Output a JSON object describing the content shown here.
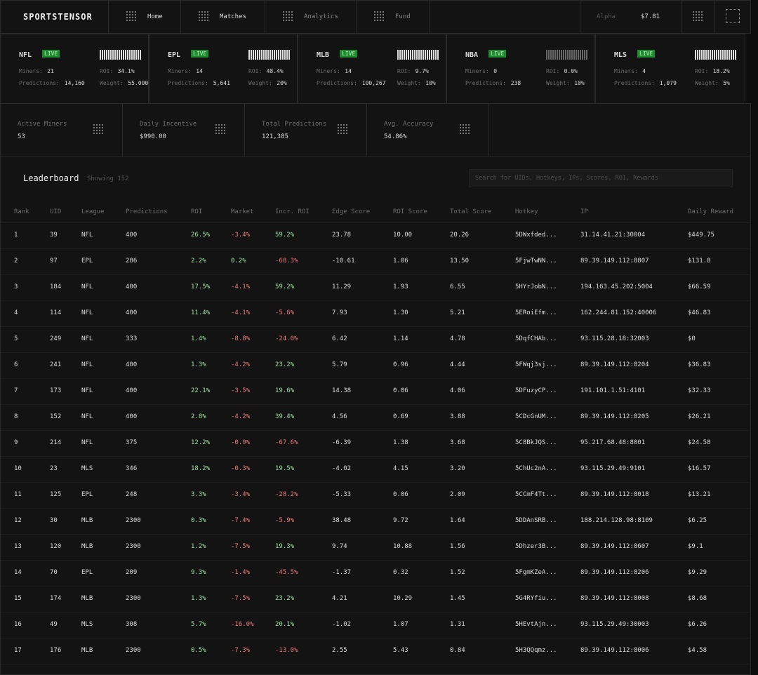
{
  "nav": {
    "brand": "SPORTSTENSOR",
    "links": [
      "Home",
      "Matches",
      "Analytics",
      "Fund"
    ],
    "alpha_label": "Alpha",
    "alpha_value": "$7.81"
  },
  "card_labels": {
    "miners": "Miners:",
    "roi": "ROI:",
    "predictions": "Predictions:",
    "weight": "Weight:"
  },
  "leagues": [
    {
      "name": "NFL",
      "status": "LIVE",
      "miners": "21",
      "roi": "34.1%",
      "predictions": "14,160",
      "weight": "55.0000"
    },
    {
      "name": "EPL",
      "status": "LIVE",
      "miners": "14",
      "roi": "48.4%",
      "predictions": "5,641",
      "weight": "20%"
    },
    {
      "name": "MLB",
      "status": "LIVE",
      "miners": "14",
      "roi": "9.7%",
      "predictions": "100,267",
      "weight": "10%"
    },
    {
      "name": "NBA",
      "status": "LIVE",
      "miners": "0",
      "roi": "0.0%",
      "predictions": "238",
      "weight": "10%"
    },
    {
      "name": "MLS",
      "status": "LIVE",
      "miners": "4",
      "roi": "18.2%",
      "predictions": "1,079",
      "weight": "5%"
    }
  ],
  "stats": [
    {
      "label": "Active Miners",
      "value": "53"
    },
    {
      "label": "Daily Incentive",
      "value": "$990.00"
    },
    {
      "label": "Total Predictions",
      "value": "121,385"
    },
    {
      "label": "Avg. Accuracy",
      "value": "54.86%"
    }
  ],
  "leaderboard": {
    "title": "Leaderboard",
    "showing": "Showing 152",
    "search_placeholder": "Search for UIDs, Hotkeys, IPs, Scores, ROI, Rewards"
  },
  "table": {
    "columns": [
      "Rank",
      "UID",
      "League",
      "Predictions",
      "ROI",
      "Market",
      "Incr. ROI",
      "Edge Score",
      "ROI Score",
      "Total Score",
      "Hotkey",
      "IP",
      "Daily Reward"
    ],
    "rows": [
      [
        "1",
        "39",
        "NFL",
        "400",
        "26.5%",
        "-3.4%",
        "59.2%",
        "23.78",
        "10.00",
        "20.26",
        "5DWxfded...",
        "31.14.41.21:30004",
        "$449.75"
      ],
      [
        "2",
        "97",
        "EPL",
        "286",
        "2.2%",
        "0.2%",
        "-68.3%",
        "-10.61",
        "1.06",
        "13.50",
        "5FjwTwNN...",
        "89.39.149.112:8807",
        "$131.8"
      ],
      [
        "3",
        "184",
        "NFL",
        "400",
        "17.5%",
        "-4.1%",
        "59.2%",
        "11.29",
        "1.93",
        "6.55",
        "5HYrJobN...",
        "194.163.45.202:5004",
        "$66.59"
      ],
      [
        "4",
        "114",
        "NFL",
        "400",
        "11.4%",
        "-4.1%",
        "-5.6%",
        "7.93",
        "1.30",
        "5.21",
        "5ERoiEfm...",
        "162.244.81.152:40006",
        "$46.83"
      ],
      [
        "5",
        "249",
        "NFL",
        "333",
        "1.4%",
        "-8.8%",
        "-24.0%",
        "6.42",
        "1.14",
        "4.78",
        "5DqfCHAb...",
        "93.115.28.18:32003",
        "$0"
      ],
      [
        "6",
        "241",
        "NFL",
        "400",
        "1.3%",
        "-4.2%",
        "23.2%",
        "5.79",
        "0.96",
        "4.44",
        "5FWqj3sj...",
        "89.39.149.112:8204",
        "$36.83"
      ],
      [
        "7",
        "173",
        "NFL",
        "400",
        "22.1%",
        "-3.5%",
        "19.6%",
        "14.38",
        "0.06",
        "4.06",
        "5DFuzyCP...",
        "191.101.1.51:4101",
        "$32.33"
      ],
      [
        "8",
        "152",
        "NFL",
        "400",
        "2.8%",
        "-4.2%",
        "39.4%",
        "4.56",
        "0.69",
        "3.88",
        "5CDcGnUM...",
        "89.39.149.112:8205",
        "$26.21"
      ],
      [
        "9",
        "214",
        "NFL",
        "375",
        "12.2%",
        "-0.9%",
        "-67.6%",
        "-6.39",
        "1.38",
        "3.68",
        "5C8BkJQS...",
        "95.217.68.48:8001",
        "$24.58"
      ],
      [
        "10",
        "23",
        "MLS",
        "346",
        "18.2%",
        "-0.3%",
        "19.5%",
        "-4.02",
        "4.15",
        "3.20",
        "5ChUc2nA...",
        "93.115.29.49:9101",
        "$16.57"
      ],
      [
        "11",
        "125",
        "EPL",
        "248",
        "3.3%",
        "-3.4%",
        "-28.2%",
        "-5.33",
        "0.06",
        "2.09",
        "5CCmF4Tt...",
        "89.39.149.112:8018",
        "$13.21"
      ],
      [
        "12",
        "30",
        "MLB",
        "2300",
        "0.3%",
        "-7.4%",
        "-5.9%",
        "38.48",
        "9.72",
        "1.64",
        "5DDAnSRB...",
        "188.214.128.98:8109",
        "$6.25"
      ],
      [
        "13",
        "120",
        "MLB",
        "2300",
        "1.2%",
        "-7.5%",
        "19.3%",
        "9.74",
        "10.88",
        "1.56",
        "5Dhzer3B...",
        "89.39.149.112:8607",
        "$9.1"
      ],
      [
        "14",
        "70",
        "EPL",
        "209",
        "9.3%",
        "-1.4%",
        "-45.5%",
        "-1.37",
        "0.32",
        "1.52",
        "5FgmKZeA...",
        "89.39.149.112:8206",
        "$9.29"
      ],
      [
        "15",
        "174",
        "MLB",
        "2300",
        "1.3%",
        "-7.5%",
        "23.2%",
        "4.21",
        "10.29",
        "1.45",
        "5G4RYfiu...",
        "89.39.149.112:8008",
        "$8.68"
      ],
      [
        "16",
        "49",
        "MLS",
        "308",
        "5.7%",
        "-16.0%",
        "20.1%",
        "-1.02",
        "1.07",
        "1.31",
        "5HEvtAjn...",
        "93.115.29.49:30003",
        "$6.26"
      ],
      [
        "17",
        "176",
        "MLB",
        "2300",
        "0.5%",
        "-7.3%",
        "-13.0%",
        "2.55",
        "5.43",
        "0.84",
        "5H3QQqmz...",
        "89.39.149.112:8006",
        "$4.58"
      ]
    ]
  }
}
